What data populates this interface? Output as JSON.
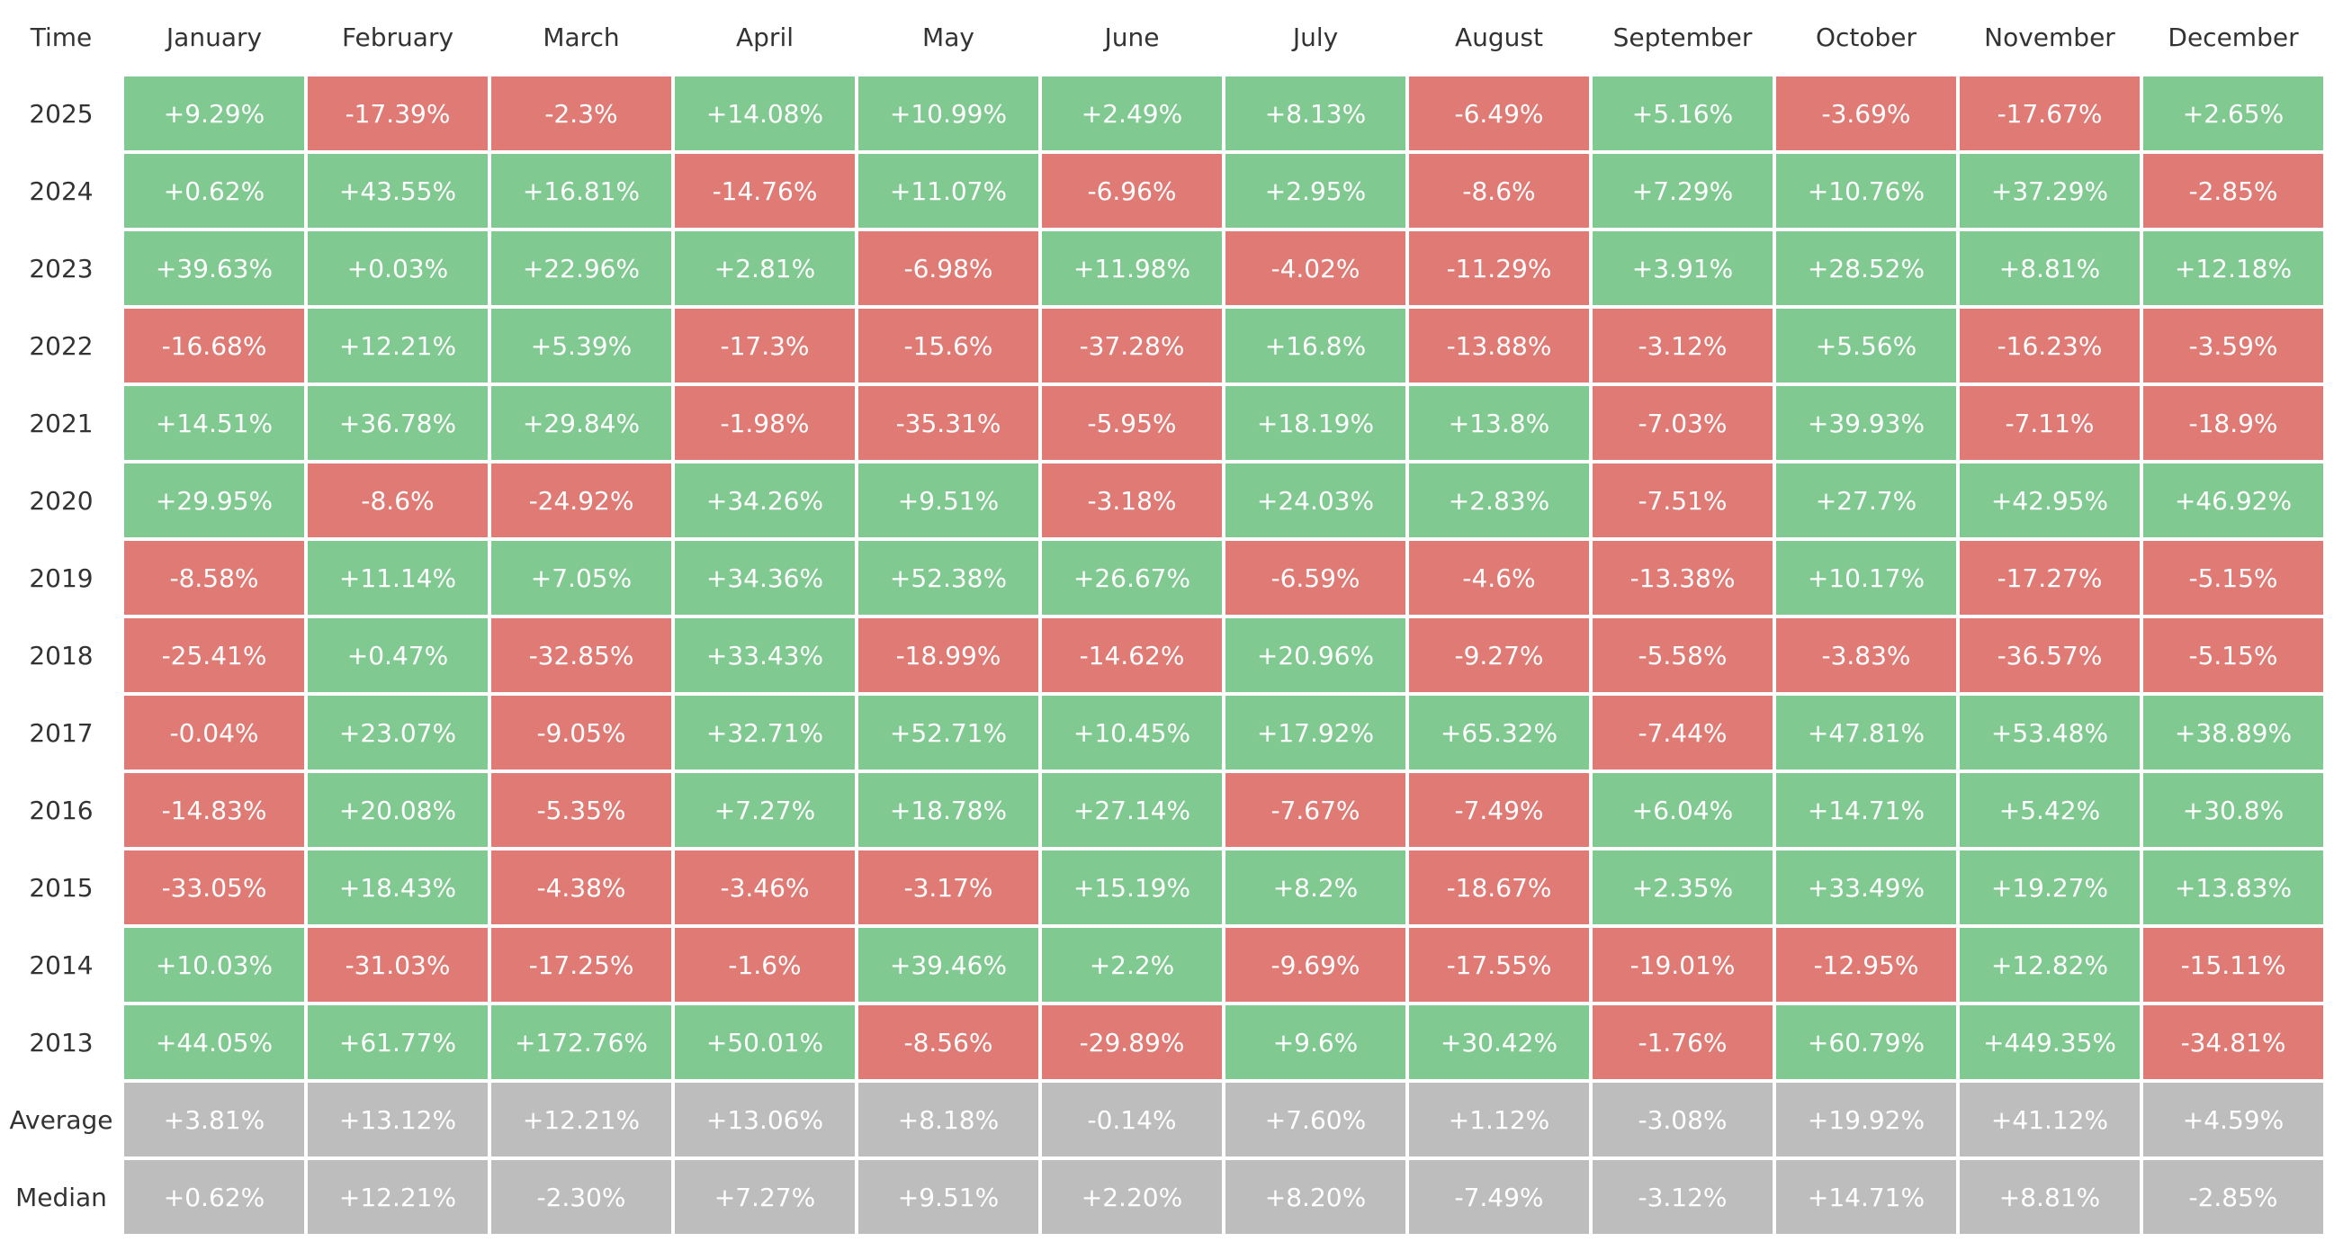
{
  "table": {
    "header": [
      "Time",
      "January",
      "February",
      "March",
      "April",
      "May",
      "June",
      "July",
      "August",
      "September",
      "October",
      "November",
      "December"
    ],
    "rows": [
      [
        "2025",
        "+9.29%",
        "-17.39%",
        "-2.3%",
        "+14.08%",
        "+10.99%",
        "+2.49%",
        "+8.13%",
        "-6.49%",
        "+5.16%",
        "-3.69%",
        "-17.67%",
        "+2.65%"
      ],
      [
        "2024",
        "+0.62%",
        "+43.55%",
        "+16.81%",
        "-14.76%",
        "+11.07%",
        "-6.96%",
        "+2.95%",
        "-8.6%",
        "+7.29%",
        "+10.76%",
        "+37.29%",
        "-2.85%"
      ],
      [
        "2023",
        "+39.63%",
        "+0.03%",
        "+22.96%",
        "+2.81%",
        "-6.98%",
        "+11.98%",
        "-4.02%",
        "-11.29%",
        "+3.91%",
        "+28.52%",
        "+8.81%",
        "+12.18%"
      ],
      [
        "2022",
        "-16.68%",
        "+12.21%",
        "+5.39%",
        "-17.3%",
        "-15.6%",
        "-37.28%",
        "+16.8%",
        "-13.88%",
        "-3.12%",
        "+5.56%",
        "-16.23%",
        "-3.59%"
      ],
      [
        "2021",
        "+14.51%",
        "+36.78%",
        "+29.84%",
        "-1.98%",
        "-35.31%",
        "-5.95%",
        "+18.19%",
        "+13.8%",
        "-7.03%",
        "+39.93%",
        "-7.11%",
        "-18.9%"
      ],
      [
        "2020",
        "+29.95%",
        "-8.6%",
        "-24.92%",
        "+34.26%",
        "+9.51%",
        "-3.18%",
        "+24.03%",
        "+2.83%",
        "-7.51%",
        "+27.7%",
        "+42.95%",
        "+46.92%"
      ],
      [
        "2019",
        "-8.58%",
        "+11.14%",
        "+7.05%",
        "+34.36%",
        "+52.38%",
        "+26.67%",
        "-6.59%",
        "-4.6%",
        "-13.38%",
        "+10.17%",
        "-17.27%",
        "-5.15%"
      ],
      [
        "2018",
        "-25.41%",
        "+0.47%",
        "-32.85%",
        "+33.43%",
        "-18.99%",
        "-14.62%",
        "+20.96%",
        "-9.27%",
        "-5.58%",
        "-3.83%",
        "-36.57%",
        "-5.15%"
      ],
      [
        "2017",
        "-0.04%",
        "+23.07%",
        "-9.05%",
        "+32.71%",
        "+52.71%",
        "+10.45%",
        "+17.92%",
        "+65.32%",
        "-7.44%",
        "+47.81%",
        "+53.48%",
        "+38.89%"
      ],
      [
        "2016",
        "-14.83%",
        "+20.08%",
        "-5.35%",
        "+7.27%",
        "+18.78%",
        "+27.14%",
        "-7.67%",
        "-7.49%",
        "+6.04%",
        "+14.71%",
        "+5.42%",
        "+30.8%"
      ],
      [
        "2015",
        "-33.05%",
        "+18.43%",
        "-4.38%",
        "-3.46%",
        "-3.17%",
        "+15.19%",
        "+8.2%",
        "-18.67%",
        "+2.35%",
        "+33.49%",
        "+19.27%",
        "+13.83%"
      ],
      [
        "2014",
        "+10.03%",
        "-31.03%",
        "-17.25%",
        "-1.6%",
        "+39.46%",
        "+2.2%",
        "-9.69%",
        "-17.55%",
        "-19.01%",
        "-12.95%",
        "+12.82%",
        "-15.11%"
      ],
      [
        "2013",
        "+44.05%",
        "+61.77%",
        "+172.76%",
        "+50.01%",
        "-8.56%",
        "-29.89%",
        "+9.6%",
        "+30.42%",
        "-1.76%",
        "+60.79%",
        "+449.35%",
        "-34.81%"
      ]
    ],
    "summary_rows": [
      [
        "Average",
        "+3.81%",
        "+13.12%",
        "+12.21%",
        "+13.06%",
        "+8.18%",
        "-0.14%",
        "+7.60%",
        "+1.12%",
        "-3.08%",
        "+19.92%",
        "+41.12%",
        "+4.59%"
      ],
      [
        "Median",
        "+0.62%",
        "+12.21%",
        "-2.30%",
        "+7.27%",
        "+9.51%",
        "+2.20%",
        "+8.20%",
        "-7.49%",
        "-3.12%",
        "+14.71%",
        "+8.81%",
        "-2.85%"
      ]
    ],
    "positive_color": "#80c990",
    "negative_color": "#e07a75",
    "summary_color": "#bdbdbd"
  }
}
